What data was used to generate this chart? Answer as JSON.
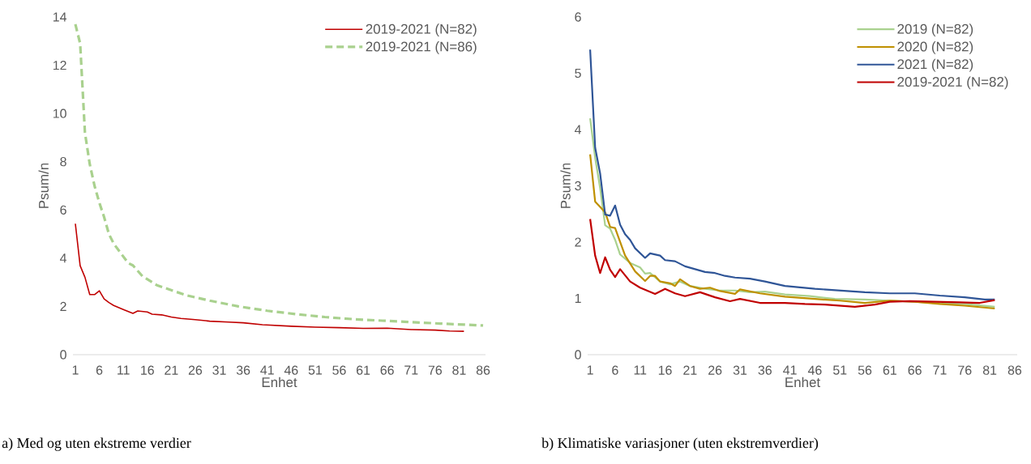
{
  "chart_data": [
    {
      "type": "line",
      "xlabel": "Enhet",
      "ylabel": "Psum/n",
      "xlim": [
        0.5,
        86.5
      ],
      "xticks": [
        1,
        6,
        11,
        16,
        21,
        26,
        31,
        36,
        41,
        46,
        51,
        56,
        61,
        66,
        71,
        76,
        81,
        86
      ],
      "ylim": [
        0,
        14
      ],
      "yticks": [
        0,
        2,
        4,
        6,
        8,
        10,
        12,
        14
      ],
      "legend": "top right",
      "series": [
        {
          "name": "2019-2021 (N=82)",
          "color": "#c00000",
          "x": [
            1,
            2,
            3,
            4,
            5,
            6,
            7,
            8,
            9,
            11,
            13,
            14,
            16,
            17,
            19,
            21,
            23,
            26,
            29,
            33,
            36,
            40,
            46,
            51,
            56,
            61,
            66,
            71,
            76,
            79,
            82
          ],
          "values": [
            5.43,
            3.69,
            3.21,
            2.49,
            2.49,
            2.65,
            2.31,
            2.16,
            2.04,
            1.87,
            1.71,
            1.81,
            1.77,
            1.68,
            1.65,
            1.56,
            1.5,
            1.45,
            1.39,
            1.35,
            1.32,
            1.24,
            1.18,
            1.14,
            1.12,
            1.09,
            1.1,
            1.04,
            1.02,
            0.98,
            0.97
          ]
        },
        {
          "name": "2019-2021 (N=86)",
          "color": "#a9d18e",
          "line_style": "dashed",
          "x": [
            1,
            2,
            3,
            4,
            5,
            6,
            7,
            8,
            9,
            12,
            13,
            15,
            18,
            24,
            29,
            35,
            41,
            47,
            53,
            59,
            65,
            71,
            77,
            86
          ],
          "values": [
            13.7,
            12.9,
            9.2,
            7.9,
            7.0,
            6.3,
            5.7,
            5.0,
            4.6,
            3.8,
            3.7,
            3.25,
            2.88,
            2.47,
            2.24,
            2.0,
            1.82,
            1.68,
            1.56,
            1.47,
            1.41,
            1.35,
            1.29,
            1.21
          ]
        }
      ],
      "annotations": [
        "a) Med og uten ekstreme verdier"
      ]
    },
    {
      "type": "line",
      "xlabel": "Enhet",
      "ylabel": "Psum/n",
      "xlim": [
        0.5,
        86.5
      ],
      "xticks": [
        1,
        6,
        11,
        16,
        21,
        26,
        31,
        36,
        41,
        46,
        51,
        56,
        61,
        66,
        71,
        76,
        81,
        86
      ],
      "ylim": [
        0,
        6
      ],
      "yticks": [
        0,
        1,
        2,
        3,
        4,
        5,
        6
      ],
      "legend": "top right",
      "series": [
        {
          "name": "2019 (N=82)",
          "color": "#a9d18e",
          "x": [
            1,
            2,
            3,
            4,
            5,
            6,
            7,
            9,
            11,
            12,
            13,
            15,
            17,
            19,
            21,
            24,
            27,
            30,
            33,
            36,
            40,
            45,
            50,
            56,
            61,
            66,
            71,
            76,
            82
          ],
          "values": [
            4.2,
            3.5,
            2.96,
            2.3,
            2.24,
            2.04,
            1.78,
            1.63,
            1.55,
            1.44,
            1.45,
            1.3,
            1.25,
            1.3,
            1.22,
            1.17,
            1.14,
            1.14,
            1.11,
            1.12,
            1.07,
            1.04,
            0.99,
            0.98,
            0.96,
            0.94,
            0.91,
            0.9,
            0.85
          ]
        },
        {
          "name": "2020 (N=82)",
          "color": "#bf9000",
          "x": [
            1,
            2,
            4,
            5,
            6,
            8,
            10,
            12,
            13,
            14,
            15,
            17,
            18,
            19,
            21,
            23,
            25,
            27,
            30,
            31,
            35,
            40,
            46,
            51,
            56,
            61,
            66,
            71,
            76,
            82
          ],
          "values": [
            3.56,
            2.72,
            2.53,
            2.27,
            2.25,
            1.76,
            1.48,
            1.31,
            1.4,
            1.4,
            1.3,
            1.27,
            1.22,
            1.34,
            1.22,
            1.17,
            1.19,
            1.13,
            1.08,
            1.16,
            1.09,
            1.03,
            0.99,
            0.96,
            0.92,
            0.96,
            0.94,
            0.9,
            0.87,
            0.82
          ]
        },
        {
          "name": "2021 (N=82)",
          "color": "#2f5597",
          "x": [
            1,
            2,
            3,
            4,
            5,
            6,
            7,
            8,
            9,
            10,
            12,
            13,
            15,
            16,
            18,
            20,
            22,
            24,
            26,
            28,
            30,
            33,
            36,
            40,
            46,
            51,
            56,
            61,
            66,
            71,
            76,
            80,
            82
          ],
          "values": [
            5.42,
            3.68,
            3.22,
            2.49,
            2.47,
            2.65,
            2.31,
            2.14,
            2.04,
            1.89,
            1.72,
            1.8,
            1.76,
            1.68,
            1.66,
            1.57,
            1.52,
            1.47,
            1.45,
            1.4,
            1.37,
            1.35,
            1.3,
            1.22,
            1.17,
            1.14,
            1.11,
            1.09,
            1.09,
            1.05,
            1.02,
            0.98,
            0.98
          ]
        },
        {
          "name": "2019-2021 (N=82)",
          "color": "#c00000",
          "x": [
            1,
            2,
            3,
            4,
            5,
            6,
            7,
            9,
            11,
            14,
            16,
            18,
            20,
            23,
            26,
            29,
            31,
            35,
            40,
            44,
            48,
            54,
            58,
            61,
            65,
            70,
            75,
            79,
            82
          ],
          "values": [
            2.41,
            1.76,
            1.45,
            1.73,
            1.51,
            1.38,
            1.52,
            1.3,
            1.19,
            1.08,
            1.17,
            1.09,
            1.04,
            1.11,
            1.02,
            0.95,
            0.99,
            0.92,
            0.92,
            0.9,
            0.89,
            0.85,
            0.89,
            0.94,
            0.95,
            0.94,
            0.93,
            0.92,
            0.97
          ]
        }
      ],
      "annotations": [
        "b)  Klimatiske variasjoner (uten ekstremverdier)"
      ]
    }
  ]
}
